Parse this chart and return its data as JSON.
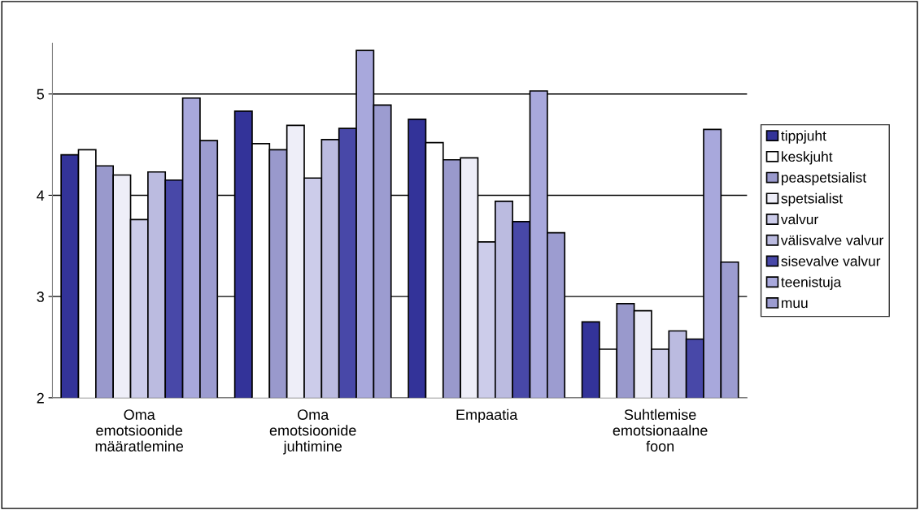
{
  "chart_data": {
    "type": "bar",
    "categories": [
      "Oma\nemotsioonide\nmääratlemine",
      "Oma\nemotsioonide\njuhtimine",
      "Empaatia",
      "Suhtlemise\nemotsionaalne\nfoon"
    ],
    "series": [
      {
        "name": "tippjuht",
        "color": "#333399",
        "values": [
          4.4,
          4.83,
          4.75,
          2.75
        ]
      },
      {
        "name": "keskjuht",
        "color": "#ffffff",
        "values": [
          4.45,
          4.51,
          4.52,
          2.48
        ]
      },
      {
        "name": "peaspetsialist",
        "color": "#9999cc",
        "values": [
          4.29,
          4.45,
          4.35,
          2.93
        ]
      },
      {
        "name": "spetsialist",
        "color": "#eeeef8",
        "values": [
          4.2,
          4.69,
          4.37,
          2.86
        ]
      },
      {
        "name": "valvur",
        "color": "#ccccea",
        "values": [
          3.76,
          4.17,
          3.54,
          2.48
        ]
      },
      {
        "name": "välisvalve valvur",
        "color": "#bbbbe0",
        "values": [
          4.23,
          4.55,
          3.94,
          2.66
        ]
      },
      {
        "name": "sisevalve valvur",
        "color": "#4848a8",
        "values": [
          4.15,
          4.66,
          3.74,
          2.58
        ]
      },
      {
        "name": "teenistuja",
        "color": "#a8a8dc",
        "values": [
          4.96,
          5.43,
          5.03,
          4.65
        ]
      },
      {
        "name": "muu",
        "color": "#9c9cd0",
        "values": [
          4.54,
          4.89,
          3.63,
          3.34
        ]
      }
    ],
    "ylim": [
      2,
      5.5
    ],
    "yticks": [
      2,
      3,
      4,
      5
    ],
    "grid": "y",
    "legend": "right"
  }
}
